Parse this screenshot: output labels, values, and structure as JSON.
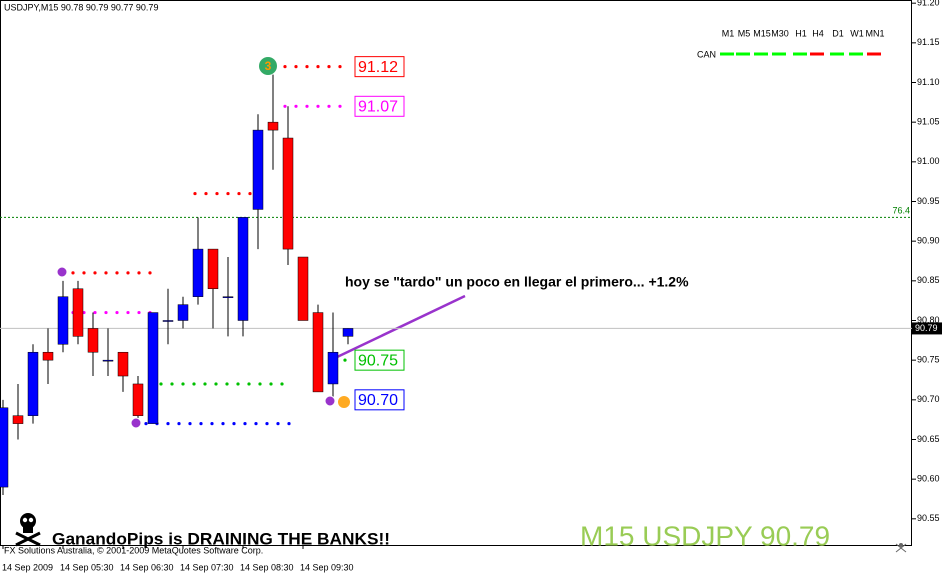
{
  "chart_data": {
    "type": "candlestick",
    "title": "USDJPY,M15 90.78 90.79 90.77 90.79",
    "categories": [
      "14 Sep 2009",
      null,
      null,
      null,
      "14 Sep 05:30",
      null,
      null,
      null,
      "14 Sep 06:30",
      null,
      null,
      null,
      "14 Sep 07:30",
      null,
      null,
      null,
      "14 Sep 08:30",
      null,
      null,
      null,
      "14 Sep 09:30",
      null,
      null,
      null
    ],
    "open": [
      90.59,
      90.68,
      90.68,
      90.76,
      90.77,
      90.84,
      90.79,
      90.75,
      90.76,
      90.72,
      90.67,
      90.8,
      90.8,
      90.83,
      90.89,
      90.83,
      90.8,
      90.94,
      91.05,
      91.03,
      90.88,
      90.81,
      90.72,
      90.78
    ],
    "high": [
      90.7,
      90.72,
      90.77,
      90.79,
      90.85,
      90.85,
      90.81,
      90.79,
      90.76,
      90.73,
      90.81,
      90.84,
      90.83,
      90.93,
      90.89,
      90.88,
      90.93,
      91.06,
      91.11,
      91.07,
      90.88,
      90.82,
      90.81,
      90.79
    ],
    "low": [
      90.58,
      90.65,
      90.67,
      90.72,
      90.76,
      90.77,
      90.73,
      90.73,
      90.71,
      90.67,
      90.67,
      90.77,
      90.79,
      90.82,
      90.79,
      90.78,
      90.78,
      90.89,
      90.99,
      90.87,
      90.8,
      90.71,
      90.7,
      90.77
    ],
    "close": [
      90.69,
      90.67,
      90.76,
      90.75,
      90.83,
      90.78,
      90.76,
      90.75,
      90.73,
      90.68,
      90.81,
      90.8,
      90.82,
      90.89,
      90.84,
      90.83,
      90.93,
      91.04,
      91.04,
      90.89,
      90.8,
      90.71,
      90.76,
      90.79
    ],
    "up_color": "#0000ff",
    "down_color": "#ff0000",
    "ylim": [
      90.517,
      91.204
    ],
    "yticks": [
      {
        "value": 91.2,
        "label": "91.20"
      },
      91.15,
      {
        "value": 91.1,
        "label": "91.10"
      },
      91.05,
      {
        "value": 91.0,
        "label": "91.00"
      },
      90.95,
      {
        "value": 90.9,
        "label": "90.90"
      },
      90.85,
      {
        "value": 90.8,
        "label": "90.80"
      },
      90.75,
      {
        "value": 90.7,
        "label": "90.70"
      },
      90.65,
      {
        "value": 90.6,
        "label": "90.60"
      },
      90.55
    ],
    "price_line": {
      "value": 90.79,
      "color": "#c0c0c0"
    },
    "fibo": {
      "value": 90.93,
      "label": "76.4",
      "color": "#008000"
    },
    "levels": [
      {
        "value": 91.12,
        "color": "#ff0000",
        "boxed": true
      },
      {
        "value": 91.07,
        "color": "#ff00ff",
        "boxed": true
      },
      {
        "value": 90.96,
        "color": "#ff0000"
      },
      {
        "value": 90.86,
        "color": "#ff0000"
      },
      {
        "value": 90.81,
        "color": "#ff00ff"
      },
      {
        "value": 90.72,
        "color": "#00c000"
      },
      {
        "value": 90.67,
        "color": "#0000ff"
      },
      {
        "value": 90.75,
        "color": "#00c000",
        "boxed": true
      },
      {
        "value": 90.7,
        "label": "90.70",
        "color": "#0000ff",
        "boxed": true
      }
    ],
    "signal_label": "3",
    "annotation": "hoy se \"tardo\" un poco en llegar el primero... +1.2%",
    "panel_label": "CAN",
    "timeframes": [
      {
        "name": "M1",
        "color": "#00ff00"
      },
      {
        "name": "M5",
        "color": "#00ff00"
      },
      {
        "name": "M15",
        "color": "#00ff00"
      },
      {
        "name": "M30",
        "color": "#00ff00"
      },
      {
        "name": "H1",
        "color": "#00ff00"
      },
      {
        "name": "H4",
        "color": "#ff0000"
      },
      {
        "name": "D1",
        "color": "#00ff00"
      },
      {
        "name": "W1",
        "color": "#00ff00"
      },
      {
        "name": "MN1",
        "color": "#ff0000"
      }
    ]
  },
  "banner": "GanandoPips is DRAINING THE BANKS!!",
  "copyright": "FX Solutions Australia, © 2001-2009 MetaQuotes Software Corp.",
  "watermark": "M15 USDJPY 90.79"
}
